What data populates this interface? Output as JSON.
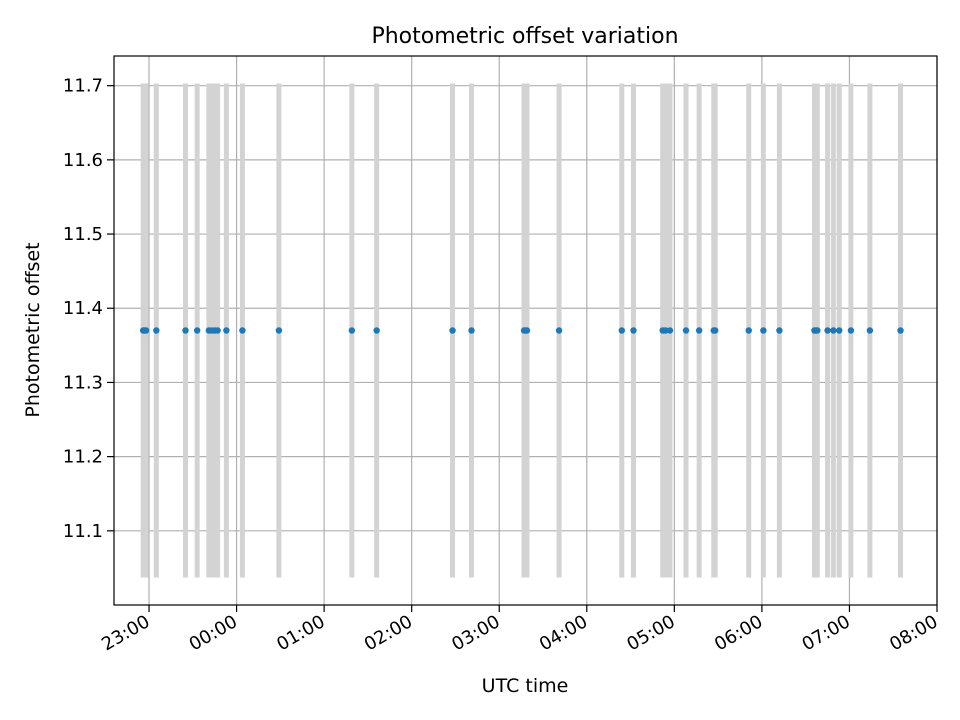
{
  "chart_data": {
    "type": "scatter",
    "title": "Photometric offset variation",
    "xlabel": "UTC time",
    "ylabel": "Photometric offset",
    "x_is_time": true,
    "xlim": [
      "22:36",
      "08:00"
    ],
    "ylim": [
      11.0,
      11.74
    ],
    "x_ticks": [
      "23:00",
      "00:00",
      "01:00",
      "02:00",
      "03:00",
      "04:00",
      "05:00",
      "06:00",
      "07:00",
      "08:00"
    ],
    "y_ticks": [
      11.1,
      11.2,
      11.3,
      11.4,
      11.5,
      11.6,
      11.7
    ],
    "grid": true,
    "marker_color": "#1f77b4",
    "band_color": "#d3d3d3",
    "band_range": [
      11.037,
      11.703
    ],
    "x": [
      "22:56",
      "22:57",
      "22:58",
      "23:05",
      "23:25",
      "23:33",
      "23:41",
      "23:43",
      "23:45",
      "23:47",
      "23:53",
      "00:04",
      "00:29",
      "01:19",
      "01:36",
      "02:28",
      "02:41",
      "03:17",
      "03:18",
      "03:19",
      "03:41",
      "04:24",
      "04:32",
      "04:52",
      "04:54",
      "04:57",
      "05:08",
      "05:17",
      "05:27",
      "05:28",
      "05:51",
      "06:01",
      "06:12",
      "06:36",
      "06:37",
      "06:38",
      "06:45",
      "06:49",
      "06:53",
      "07:01",
      "07:14",
      "07:35"
    ],
    "y": [
      11.37,
      11.37,
      11.37,
      11.37,
      11.37,
      11.37,
      11.37,
      11.37,
      11.37,
      11.37,
      11.37,
      11.37,
      11.37,
      11.37,
      11.37,
      11.37,
      11.37,
      11.37,
      11.37,
      11.37,
      11.37,
      11.37,
      11.37,
      11.37,
      11.37,
      11.37,
      11.37,
      11.37,
      11.37,
      11.37,
      11.37,
      11.37,
      11.37,
      11.37,
      11.37,
      11.37,
      11.37,
      11.37,
      11.37,
      11.37,
      11.37,
      11.37
    ]
  }
}
